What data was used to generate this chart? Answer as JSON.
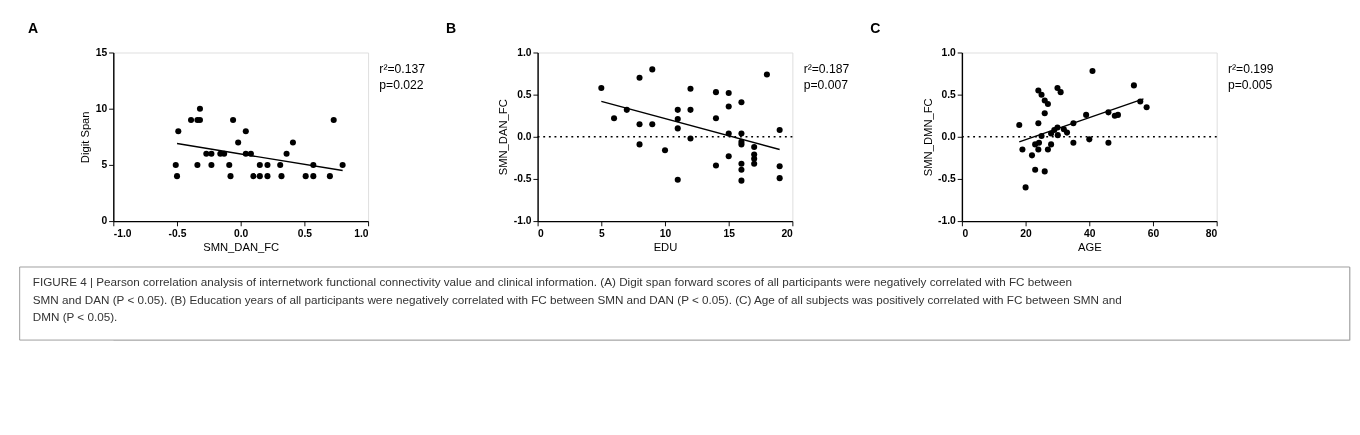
{
  "chart_data": [
    {
      "type": "scatter",
      "title": "A",
      "xlabel": "SMN_DAN_FC",
      "ylabel": "Digit Span",
      "marker": "circle",
      "grid": false,
      "xlim": [
        -1,
        1
      ],
      "xticks": [
        {
          "value": -1,
          "label": "-1.0"
        },
        {
          "value": -0.5,
          "label": "-0.5"
        },
        {
          "value": 0,
          "label": "0.0"
        },
        {
          "value": 0.5,
          "label": "0.5"
        },
        {
          "value": 1,
          "label": "1.0"
        }
      ],
      "ylim": [
        0,
        15
      ],
      "yticks": [
        0,
        5,
        10,
        15
      ],
      "annotations": [
        "r²=0.137",
        "p=0.022"
      ],
      "series": [
        {
          "type": "scatter",
          "color": "#000000",
          "x": [
            -0.49,
            -0.51,
            -0.5,
            -0.39,
            -0.34,
            -0.32,
            -0.32,
            -0.34,
            -0.27,
            -0.23,
            -0.23,
            -0.16,
            -0.13,
            -0.09,
            -0.08,
            -0.06,
            -0.02,
            0.04,
            0.04,
            0.08,
            0.1,
            0.15,
            0.15,
            0.21,
            0.21,
            0.31,
            0.32,
            0.36,
            0.41,
            0.51,
            0.57,
            0.57,
            0.73,
            0.8,
            0.7
          ],
          "values": [
            8,
            5,
            4,
            9,
            9,
            9,
            10,
            5,
            6,
            6,
            5,
            6,
            6,
            5,
            4,
            9,
            7,
            8,
            6,
            6,
            4,
            4,
            5,
            5,
            4,
            5,
            4,
            6,
            7,
            4,
            4,
            5,
            9,
            5,
            4
          ]
        },
        {
          "type": "line",
          "color": "#000000",
          "x": [
            -0.5,
            0.8
          ],
          "values": [
            6.9,
            4.5
          ],
          "marker": "none"
        }
      ]
    },
    {
      "type": "scatter",
      "title": "B",
      "xlabel": "EDU",
      "ylabel": "SMN_DAN_FC",
      "marker": "circle",
      "grid": false,
      "xlim": [
        0,
        20
      ],
      "xticks": [
        0,
        5,
        10,
        15,
        20
      ],
      "ylim": [
        -1,
        1
      ],
      "yticks": [
        {
          "value": -1,
          "label": "-1.0"
        },
        {
          "value": -0.5,
          "label": "-0.5"
        },
        {
          "value": 0,
          "label": "0.0"
        },
        {
          "value": 0.5,
          "label": "0.5"
        },
        {
          "value": 1,
          "label": "1.0"
        }
      ],
      "ref_lines": [
        {
          "axis": "y",
          "value": 0,
          "line_style": "dotted"
        }
      ],
      "annotations": [
        "r²=0.187",
        "p=0.007"
      ],
      "series": [
        {
          "type": "scatter",
          "color": "#000000",
          "x": [
            5,
            6,
            7,
            8,
            8,
            8,
            9,
            9,
            10,
            11,
            11,
            11,
            11,
            12,
            12,
            12,
            14,
            14,
            14,
            15,
            15,
            15,
            15,
            16,
            16,
            16,
            16,
            16,
            16,
            16,
            17,
            17,
            17,
            17,
            18,
            19,
            19,
            19
          ],
          "values": [
            0.58,
            0.22,
            0.32,
            0.7,
            0.15,
            -0.09,
            0.8,
            0.15,
            -0.16,
            0.32,
            0.21,
            0.1,
            -0.51,
            0.57,
            0.32,
            -0.02,
            0.53,
            0.22,
            -0.34,
            0.52,
            0.36,
            0.04,
            -0.23,
            0.41,
            0.04,
            -0.06,
            -0.09,
            -0.32,
            -0.39,
            -0.52,
            -0.12,
            -0.21,
            -0.26,
            -0.32,
            0.74,
            0.08,
            -0.35,
            -0.49
          ]
        },
        {
          "type": "line",
          "color": "#000000",
          "x": [
            5,
            19
          ],
          "values": [
            0.42,
            -0.15
          ],
          "marker": "none"
        }
      ]
    },
    {
      "type": "scatter",
      "title": "C",
      "xlabel": "AGE",
      "ylabel": "SMN_DMN_FC",
      "marker": "circle",
      "grid": false,
      "xlim": [
        0,
        80
      ],
      "xticks": [
        0,
        20,
        40,
        60,
        80
      ],
      "ylim": [
        -1,
        1
      ],
      "yticks": [
        {
          "value": -1,
          "label": "-1.0"
        },
        {
          "value": -0.5,
          "label": "-0.5"
        },
        {
          "value": 0,
          "label": "0.0"
        },
        {
          "value": 0.5,
          "label": "0.5"
        },
        {
          "value": 1,
          "label": "1.0"
        }
      ],
      "ref_lines": [
        {
          "axis": "y",
          "value": 0,
          "line_style": "dotted"
        }
      ],
      "annotations": [
        "r²=0.199",
        "p=0.005"
      ],
      "series": [
        {
          "type": "scatter",
          "color": "#000000",
          "x": [
            18,
            19,
            20,
            22,
            23,
            23,
            24,
            24,
            24,
            24.2,
            25,
            25,
            26,
            26,
            26,
            27,
            27,
            28,
            28,
            29,
            30,
            31,
            30,
            30.1,
            32,
            33,
            35,
            35,
            39,
            40,
            41,
            46,
            46,
            48,
            49,
            54,
            56,
            58
          ],
          "values": [
            0.14,
            -0.15,
            -0.6,
            -0.22,
            -0.09,
            -0.39,
            0.16,
            0.55,
            -0.15,
            -0.07,
            0.5,
            0.01,
            0.28,
            0.43,
            -0.41,
            0.39,
            -0.15,
            -0.09,
            0.04,
            0.08,
            0.58,
            0.53,
            0.11,
            0.02,
            0.09,
            0.05,
            0.16,
            -0.07,
            0.26,
            -0.03,
            0.78,
            0.29,
            -0.07,
            0.25,
            0.26,
            0.61,
            0.42,
            0.35
          ]
        },
        {
          "type": "line",
          "color": "#000000",
          "x": [
            18,
            57
          ],
          "values": [
            -0.06,
            0.45
          ],
          "marker": "none"
        }
      ]
    },
    {
      "type": "other",
      "annotations": [
        "FIGURE 4 | Pearson correlation analysis of internetwork functional connectivity value and clinical information. (A) Digit span forward scores of all participants were negatively correlated with FC between SMN and DAN (P < 0.05). (B) Education years of all participants were negatively correlated with FC between SMN and DAN (P < 0.05). (C) Age of all subjects was positively correlated with FC between SMN and DMN (P < 0.05)."
      ]
    }
  ]
}
